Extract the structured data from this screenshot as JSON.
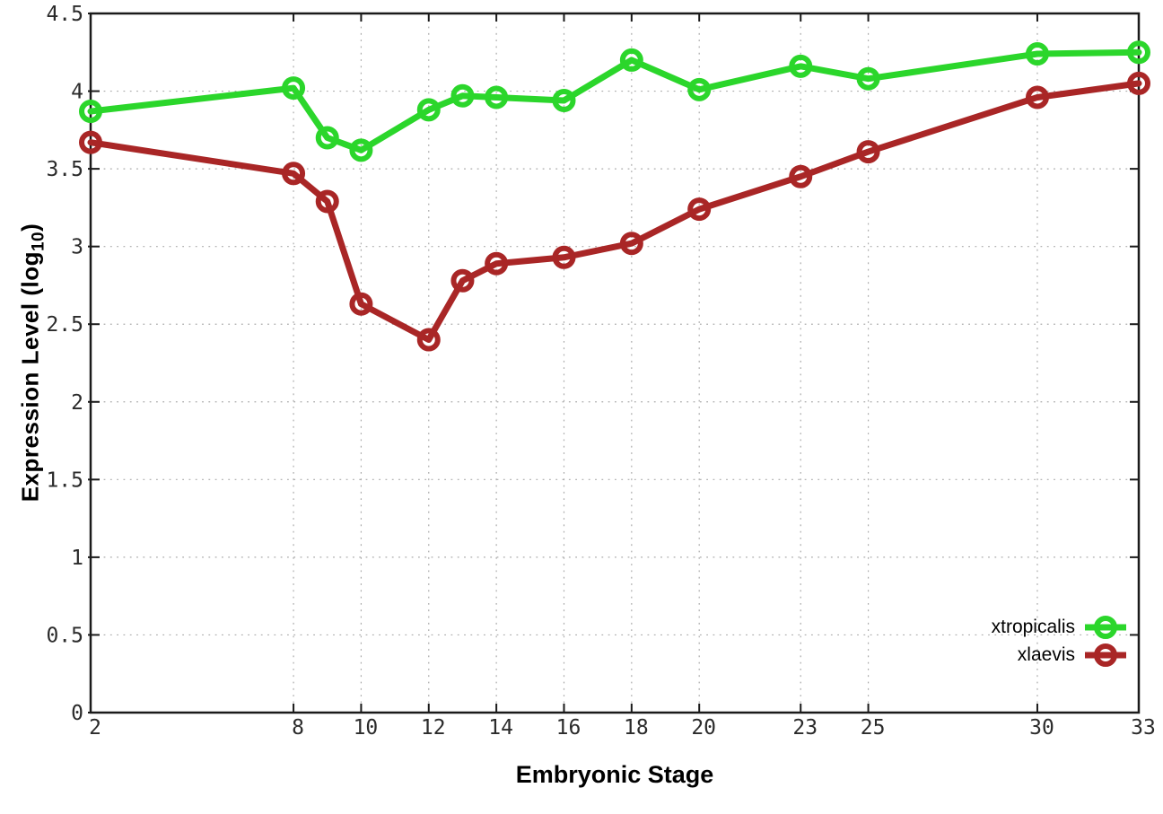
{
  "chart_data": {
    "type": "line",
    "title": "",
    "xlabel": "Embryonic Stage",
    "ylabel": "Expression Level (log₁₀)",
    "x": [
      2,
      8,
      9,
      10,
      12,
      13,
      14,
      16,
      18,
      20,
      23,
      25,
      30,
      33
    ],
    "series": [
      {
        "name": "xtropicalis",
        "color": "#2bd62b",
        "marker": "open-circle",
        "values": [
          3.87,
          4.02,
          3.7,
          3.62,
          3.88,
          3.97,
          3.96,
          3.94,
          4.2,
          4.01,
          4.16,
          4.08,
          4.24,
          4.25
        ]
      },
      {
        "name": "xlaevis",
        "color": "#a92626",
        "marker": "open-circle",
        "values": [
          3.67,
          3.47,
          3.29,
          2.63,
          2.4,
          2.78,
          2.89,
          2.93,
          3.02,
          3.24,
          3.45,
          3.61,
          3.96,
          4.05
        ]
      }
    ],
    "xlim": [
      2,
      33
    ],
    "ylim": [
      0,
      4.5
    ],
    "x_tick_values": [
      2,
      8,
      10,
      12,
      14,
      16,
      18,
      20,
      23,
      25,
      30,
      33
    ],
    "x_tick_labels": [
      "2",
      "8",
      "10",
      "12",
      "14",
      "16",
      "18",
      "20",
      "23",
      "25",
      "30",
      "33"
    ],
    "y_tick_values": [
      0,
      0.5,
      1,
      1.5,
      2,
      2.5,
      3,
      3.5,
      4,
      4.5
    ],
    "y_tick_labels": [
      "0",
      "0.5",
      "1",
      "1.5",
      "2",
      "2.5",
      "3",
      "3.5",
      "4",
      "4.5"
    ],
    "grid": true,
    "grid_style": "dotted",
    "legend_position": "bottom-right-inside",
    "colors": {
      "background": "#ffffff",
      "axis": "#1a1a1a",
      "grid": "#aaaaaa",
      "tick_text": "#2b2b2b"
    }
  }
}
